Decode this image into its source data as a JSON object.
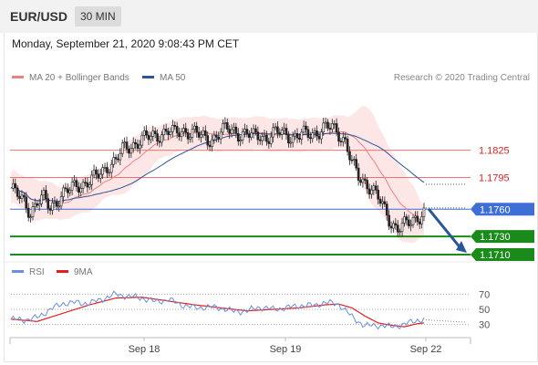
{
  "header": {
    "pair": "EUR/USD",
    "timeframe": "30 MIN",
    "datetime": "Monday, September 21, 2020 9:08:43 PM CET"
  },
  "legend": {
    "ma20": "MA 20 + Bollinger Bands",
    "ma50": "MA 50",
    "copyright": "Research © 2020 Trading Central",
    "rsi": "RSI",
    "rsi_ma": "9MA"
  },
  "colors": {
    "ma20": "#f08080",
    "ma50": "#2a5599",
    "bands": "#fde2e2",
    "resistance": "#ef7373",
    "pivot": "#3d6fd6",
    "support": "#1a8a1a",
    "arrow": "#2a5599",
    "rsi": "#6a8fe0",
    "rsi_ma": "#e02020"
  },
  "chart_data": {
    "type": "candlestick",
    "x_ticks": [
      "Sep 18",
      "Sep 19",
      "Sep 22"
    ],
    "ylim": [
      1.1705,
      1.189
    ],
    "levels": {
      "resistance": [
        1.1825,
        1.1795
      ],
      "pivot": 1.176,
      "support": [
        1.173,
        1.171
      ],
      "labels": [
        "1.1825",
        "1.1795",
        "1.1760",
        "1.1730",
        "1.1710"
      ]
    },
    "price_series": [
      [
        0,
        1.1783
      ],
      [
        3,
        1.1775
      ],
      [
        6,
        1.1768
      ],
      [
        9,
        1.1757
      ],
      [
        12,
        1.1768
      ],
      [
        15,
        1.1771
      ],
      [
        18,
        1.1762
      ],
      [
        21,
        1.177
      ],
      [
        24,
        1.1777
      ],
      [
        27,
        1.1781
      ],
      [
        30,
        1.1787
      ],
      [
        33,
        1.1788
      ],
      [
        36,
        1.1791
      ],
      [
        39,
        1.1795
      ],
      [
        42,
        1.1802
      ],
      [
        45,
        1.181
      ],
      [
        48,
        1.1813
      ],
      [
        51,
        1.1825
      ],
      [
        54,
        1.1829
      ],
      [
        57,
        1.1833
      ],
      [
        60,
        1.1837
      ],
      [
        63,
        1.1839
      ],
      [
        66,
        1.1841
      ],
      [
        69,
        1.1844
      ],
      [
        72,
        1.1846
      ],
      [
        75,
        1.1843
      ],
      [
        78,
        1.1847
      ],
      [
        81,
        1.1846
      ],
      [
        84,
        1.1844
      ],
      [
        87,
        1.184
      ],
      [
        90,
        1.1837
      ],
      [
        93,
        1.1839
      ],
      [
        96,
        1.1845
      ],
      [
        99,
        1.1848
      ],
      [
        102,
        1.1847
      ],
      [
        105,
        1.1843
      ],
      [
        108,
        1.1842
      ],
      [
        111,
        1.184
      ],
      [
        114,
        1.1843
      ],
      [
        117,
        1.1838
      ],
      [
        120,
        1.1842
      ],
      [
        123,
        1.1845
      ],
      [
        126,
        1.1844
      ],
      [
        129,
        1.1839
      ],
      [
        132,
        1.184
      ],
      [
        135,
        1.1843
      ],
      [
        138,
        1.1844
      ],
      [
        141,
        1.1846
      ],
      [
        144,
        1.1849
      ],
      [
        147,
        1.185
      ],
      [
        150,
        1.1844
      ],
      [
        153,
        1.1835
      ],
      [
        156,
        1.181
      ],
      [
        159,
        1.1795
      ],
      [
        162,
        1.179
      ],
      [
        165,
        1.1784
      ],
      [
        168,
        1.1772
      ],
      [
        171,
        1.1758
      ],
      [
        174,
        1.1745
      ],
      [
        177,
        1.174
      ],
      [
        180,
        1.1742
      ],
      [
        183,
        1.1745
      ],
      [
        186,
        1.1752
      ],
      [
        189,
        1.1757
      ]
    ],
    "rsi_series": [
      [
        0,
        37
      ],
      [
        6,
        36
      ],
      [
        12,
        39
      ],
      [
        18,
        50
      ],
      [
        24,
        58
      ],
      [
        30,
        59
      ],
      [
        36,
        58
      ],
      [
        42,
        64
      ],
      [
        48,
        70
      ],
      [
        54,
        67
      ],
      [
        60,
        65
      ],
      [
        66,
        60
      ],
      [
        72,
        63
      ],
      [
        78,
        56
      ],
      [
        84,
        52
      ],
      [
        90,
        53
      ],
      [
        96,
        52
      ],
      [
        102,
        47
      ],
      [
        108,
        48
      ],
      [
        114,
        53
      ],
      [
        120,
        50
      ],
      [
        126,
        52
      ],
      [
        132,
        55
      ],
      [
        138,
        55
      ],
      [
        144,
        59
      ],
      [
        150,
        57
      ],
      [
        156,
        40
      ],
      [
        162,
        28
      ],
      [
        168,
        29
      ],
      [
        174,
        27
      ],
      [
        180,
        30
      ],
      [
        186,
        36
      ],
      [
        189,
        36
      ]
    ],
    "rsi_ma_series": [
      [
        0,
        37
      ],
      [
        12,
        34
      ],
      [
        24,
        45
      ],
      [
        36,
        56
      ],
      [
        48,
        65
      ],
      [
        60,
        66
      ],
      [
        72,
        61
      ],
      [
        84,
        56
      ],
      [
        96,
        52
      ],
      [
        108,
        48
      ],
      [
        120,
        50
      ],
      [
        132,
        52
      ],
      [
        144,
        56
      ],
      [
        150,
        57
      ],
      [
        156,
        52
      ],
      [
        162,
        41
      ],
      [
        168,
        32
      ],
      [
        174,
        29
      ],
      [
        180,
        27
      ],
      [
        186,
        31
      ],
      [
        189,
        32
      ]
    ],
    "rsi_levels": [
      70,
      50,
      30
    ],
    "rsi_ylim": [
      15,
      85
    ]
  }
}
